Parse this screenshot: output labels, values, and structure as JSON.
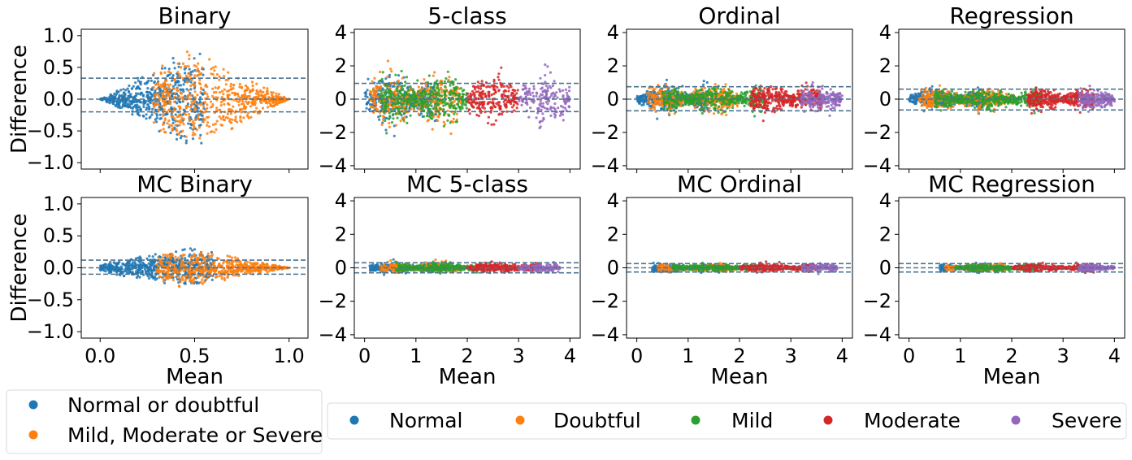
{
  "colors": {
    "normal": "#1f77b4",
    "doubtful": "#ff7f0e",
    "mild": "#2ca02c",
    "moderate": "#d62728",
    "severe": "#9467bd",
    "limit_line": "#4a7391"
  },
  "chart_data": [
    {
      "type": "scatter",
      "title": "Binary",
      "xlabel": "",
      "ylabel": "Difference",
      "xlim": [
        -0.1,
        1.1
      ],
      "ylim": [
        -1.1,
        1.1
      ],
      "xticks": [
        0.0,
        0.5,
        1.0
      ],
      "yticks": [
        -1.0,
        -0.5,
        0.0,
        0.5,
        1.0
      ],
      "ytick_labels": [
        "−1.0",
        "−0.5",
        "0.0",
        "0.5",
        "1.0"
      ],
      "show_xtick_labels": false,
      "limits": [
        0.33,
        0.0,
        -0.2
      ],
      "classes": [
        "normal",
        "doubtful"
      ],
      "series": [
        {
          "label_key": "binary_normal",
          "color_key": "normal",
          "x_range": [
            0.0,
            0.55
          ],
          "n": 560
        },
        {
          "label_key": "binary_severe",
          "color_key": "doubtful",
          "x_range": [
            0.28,
            1.0
          ],
          "n": 620
        }
      ],
      "envelope": {
        "center": 0.5,
        "peak": 0.85
      }
    },
    {
      "type": "scatter",
      "title": "5-class",
      "xlabel": "",
      "ylabel": "",
      "xlim": [
        -0.2,
        4.2
      ],
      "ylim": [
        -4.2,
        4.2
      ],
      "xticks": [
        0,
        1,
        2,
        3,
        4
      ],
      "yticks": [
        -4,
        -2,
        0,
        2,
        4
      ],
      "ytick_labels": [
        "−4",
        "−2",
        "0",
        "2",
        "4"
      ],
      "show_xtick_labels": false,
      "limits": [
        0.95,
        0.0,
        -0.75
      ],
      "series": [
        {
          "name": "Normal",
          "color_key": "normal",
          "x_range": [
            0.0,
            1.4
          ],
          "n": 340
        },
        {
          "name": "Doubtful",
          "color_key": "doubtful",
          "x_range": [
            0.1,
            1.9
          ],
          "n": 360
        },
        {
          "name": "Mild",
          "color_key": "mild",
          "x_range": [
            0.3,
            2.0
          ],
          "n": 380
        },
        {
          "name": "Moderate",
          "color_key": "moderate",
          "x_range": [
            2.0,
            3.0
          ],
          "n": 240
        },
        {
          "name": "Severe",
          "color_key": "severe",
          "x_range": [
            3.0,
            4.0
          ],
          "n": 180
        }
      ],
      "spread": 1.9
    },
    {
      "type": "scatter",
      "title": "Ordinal",
      "xlabel": "",
      "ylabel": "",
      "xlim": [
        -0.2,
        4.2
      ],
      "ylim": [
        -4.2,
        4.2
      ],
      "xticks": [
        0,
        1,
        2,
        3,
        4
      ],
      "yticks": [
        -4,
        -2,
        0,
        2,
        4
      ],
      "ytick_labels": [
        "−4",
        "−2",
        "0",
        "2",
        "4"
      ],
      "show_xtick_labels": false,
      "limits": [
        0.75,
        0.0,
        -0.7
      ],
      "series": [
        {
          "name": "Normal",
          "color_key": "normal",
          "x_range": [
            0.0,
            1.4
          ],
          "n": 420
        },
        {
          "name": "Doubtful",
          "color_key": "doubtful",
          "x_range": [
            0.2,
            2.0
          ],
          "n": 420
        },
        {
          "name": "Mild",
          "color_key": "mild",
          "x_range": [
            0.5,
            2.5
          ],
          "n": 460
        },
        {
          "name": "Moderate",
          "color_key": "moderate",
          "x_range": [
            2.2,
            3.6
          ],
          "n": 420
        },
        {
          "name": "Severe",
          "color_key": "severe",
          "x_range": [
            3.2,
            4.0
          ],
          "n": 200
        }
      ],
      "spread": 1.0
    },
    {
      "type": "scatter",
      "title": "Regression",
      "xlabel": "",
      "ylabel": "",
      "xlim": [
        -0.2,
        4.2
      ],
      "ylim": [
        -4.2,
        4.2
      ],
      "xticks": [
        0,
        1,
        2,
        3,
        4
      ],
      "yticks": [
        -4,
        -2,
        0,
        2,
        4
      ],
      "ytick_labels": [
        "−4",
        "−2",
        "0",
        "2",
        "4"
      ],
      "show_xtick_labels": false,
      "limits": [
        0.6,
        0.0,
        -0.65
      ],
      "series": [
        {
          "name": "Normal",
          "color_key": "normal",
          "x_range": [
            0.0,
            1.5
          ],
          "n": 420
        },
        {
          "name": "Doubtful",
          "color_key": "doubtful",
          "x_range": [
            0.2,
            2.0
          ],
          "n": 420
        },
        {
          "name": "Mild",
          "color_key": "mild",
          "x_range": [
            0.5,
            2.6
          ],
          "n": 460
        },
        {
          "name": "Moderate",
          "color_key": "moderate",
          "x_range": [
            2.3,
            3.6
          ],
          "n": 420
        },
        {
          "name": "Severe",
          "color_key": "severe",
          "x_range": [
            3.3,
            4.0
          ],
          "n": 220
        }
      ],
      "spread": 0.75
    },
    {
      "type": "scatter",
      "title": "MC Binary",
      "xlabel": "Mean",
      "ylabel": "Difference",
      "xlim": [
        -0.1,
        1.1
      ],
      "ylim": [
        -1.1,
        1.1
      ],
      "xticks": [
        0.0,
        0.5,
        1.0
      ],
      "yticks": [
        -1.0,
        -0.5,
        0.0,
        0.5,
        1.0
      ],
      "xtick_labels": [
        "0.0",
        "0.5",
        "1.0"
      ],
      "ytick_labels": [
        "−1.0",
        "−0.5",
        "0.0",
        "0.5",
        "1.0"
      ],
      "show_xtick_labels": true,
      "limits": [
        0.12,
        0.0,
        -0.1
      ],
      "series": [
        {
          "label_key": "binary_normal",
          "color_key": "normal",
          "x_range": [
            0.0,
            0.6
          ],
          "n": 560
        },
        {
          "label_key": "binary_severe",
          "color_key": "doubtful",
          "x_range": [
            0.3,
            1.0
          ],
          "n": 600
        }
      ],
      "envelope": {
        "center": 0.45,
        "peak": 0.33
      }
    },
    {
      "type": "scatter",
      "title": "MC 5-class",
      "xlabel": "Mean",
      "ylabel": "",
      "xlim": [
        -0.2,
        4.2
      ],
      "ylim": [
        -4.2,
        4.2
      ],
      "xticks": [
        0,
        1,
        2,
        3,
        4
      ],
      "yticks": [
        -4,
        -2,
        0,
        2,
        4
      ],
      "xtick_labels": [
        "0",
        "1",
        "2",
        "3",
        "4"
      ],
      "ytick_labels": [
        "−4",
        "−2",
        "0",
        "2",
        "4"
      ],
      "show_xtick_labels": true,
      "limits": [
        0.3,
        0.0,
        -0.3
      ],
      "series": [
        {
          "name": "Normal",
          "color_key": "normal",
          "x_range": [
            0.1,
            1.4
          ],
          "n": 380
        },
        {
          "name": "Doubtful",
          "color_key": "doubtful",
          "x_range": [
            0.3,
            1.9
          ],
          "n": 380
        },
        {
          "name": "Mild",
          "color_key": "mild",
          "x_range": [
            0.6,
            2.3
          ],
          "n": 420
        },
        {
          "name": "Moderate",
          "color_key": "moderate",
          "x_range": [
            2.0,
            3.4
          ],
          "n": 380
        },
        {
          "name": "Severe",
          "color_key": "severe",
          "x_range": [
            3.0,
            3.8
          ],
          "n": 160
        }
      ],
      "spread": 0.35
    },
    {
      "type": "scatter",
      "title": "MC Ordinal",
      "xlabel": "Mean",
      "ylabel": "",
      "xlim": [
        -0.2,
        4.2
      ],
      "ylim": [
        -4.2,
        4.2
      ],
      "xticks": [
        0,
        1,
        2,
        3,
        4
      ],
      "yticks": [
        -4,
        -2,
        0,
        2,
        4
      ],
      "xtick_labels": [
        "0",
        "1",
        "2",
        "3",
        "4"
      ],
      "ytick_labels": [
        "−4",
        "−2",
        "0",
        "2",
        "4"
      ],
      "show_xtick_labels": true,
      "limits": [
        0.25,
        0.0,
        -0.25
      ],
      "series": [
        {
          "name": "Normal",
          "color_key": "normal",
          "x_range": [
            0.3,
            1.4
          ],
          "n": 380
        },
        {
          "name": "Doubtful",
          "color_key": "doubtful",
          "x_range": [
            0.4,
            1.9
          ],
          "n": 380
        },
        {
          "name": "Mild",
          "color_key": "mild",
          "x_range": [
            0.7,
            2.4
          ],
          "n": 420
        },
        {
          "name": "Moderate",
          "color_key": "moderate",
          "x_range": [
            2.0,
            3.5
          ],
          "n": 380
        },
        {
          "name": "Severe",
          "color_key": "severe",
          "x_range": [
            3.2,
            3.9
          ],
          "n": 160
        }
      ],
      "spread": 0.3
    },
    {
      "type": "scatter",
      "title": "MC Regression",
      "xlabel": "Mean",
      "ylabel": "",
      "xlim": [
        -0.2,
        4.2
      ],
      "ylim": [
        -4.2,
        4.2
      ],
      "xticks": [
        0,
        1,
        2,
        3,
        4
      ],
      "yticks": [
        -4,
        -2,
        0,
        2,
        4
      ],
      "xtick_labels": [
        "0",
        "1",
        "2",
        "3",
        "4"
      ],
      "ytick_labels": [
        "−4",
        "−2",
        "0",
        "2",
        "4"
      ],
      "show_xtick_labels": true,
      "limits": [
        0.25,
        0.0,
        -0.25
      ],
      "series": [
        {
          "name": "Normal",
          "color_key": "normal",
          "x_range": [
            0.6,
            1.5
          ],
          "n": 380
        },
        {
          "name": "Doubtful",
          "color_key": "doubtful",
          "x_range": [
            0.7,
            2.0
          ],
          "n": 380
        },
        {
          "name": "Mild",
          "color_key": "mild",
          "x_range": [
            0.9,
            2.5
          ],
          "n": 420
        },
        {
          "name": "Moderate",
          "color_key": "moderate",
          "x_range": [
            2.0,
            3.6
          ],
          "n": 380
        },
        {
          "name": "Severe",
          "color_key": "severe",
          "x_range": [
            3.3,
            4.0
          ],
          "n": 200
        }
      ],
      "spread": 0.28
    }
  ],
  "legends": {
    "binary": [
      {
        "label": "Normal or doubtful",
        "color_key": "normal"
      },
      {
        "label": "Mild, Moderate or Severe",
        "color_key": "doubtful"
      }
    ],
    "klg": [
      {
        "label": "Normal",
        "color_key": "normal"
      },
      {
        "label": "Doubtful",
        "color_key": "doubtful"
      },
      {
        "label": "Mild",
        "color_key": "mild"
      },
      {
        "label": "Moderate",
        "color_key": "moderate"
      },
      {
        "label": "Severe",
        "color_key": "severe"
      }
    ]
  }
}
